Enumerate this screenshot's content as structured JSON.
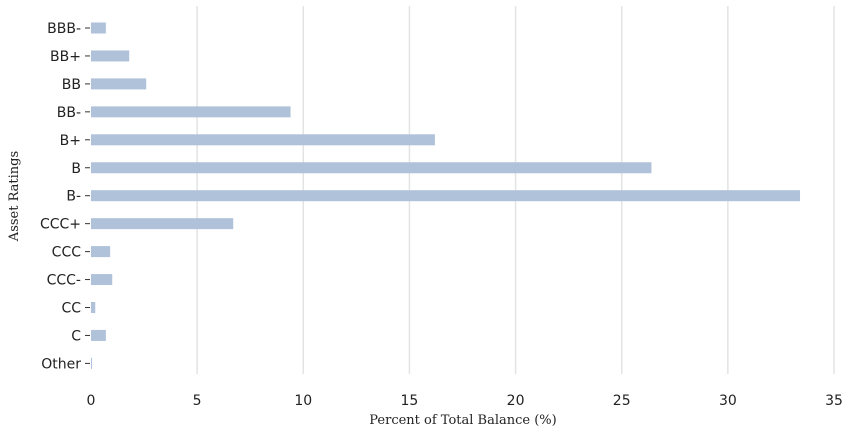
{
  "chart_data": {
    "type": "bar",
    "orientation": "horizontal",
    "title": "",
    "xlabel": "Percent of Total Balance (%)",
    "ylabel": "Asset Ratings",
    "categories": [
      "BBB-",
      "BB+",
      "BB",
      "BB-",
      "B+",
      "B",
      "B-",
      "CCC+",
      "CCC",
      "CCC-",
      "CC",
      "C",
      "Other"
    ],
    "values": [
      0.7,
      1.8,
      2.6,
      9.4,
      16.2,
      26.4,
      33.4,
      6.7,
      0.9,
      1.0,
      0.2,
      0.7,
      0.05
    ],
    "xlim": [
      0,
      35
    ],
    "xticks": [
      0,
      5,
      10,
      15,
      20,
      25,
      30,
      35
    ],
    "grid": "vertical",
    "bar_color": "#afc2da",
    "grid_color": "#e3e3e3"
  }
}
